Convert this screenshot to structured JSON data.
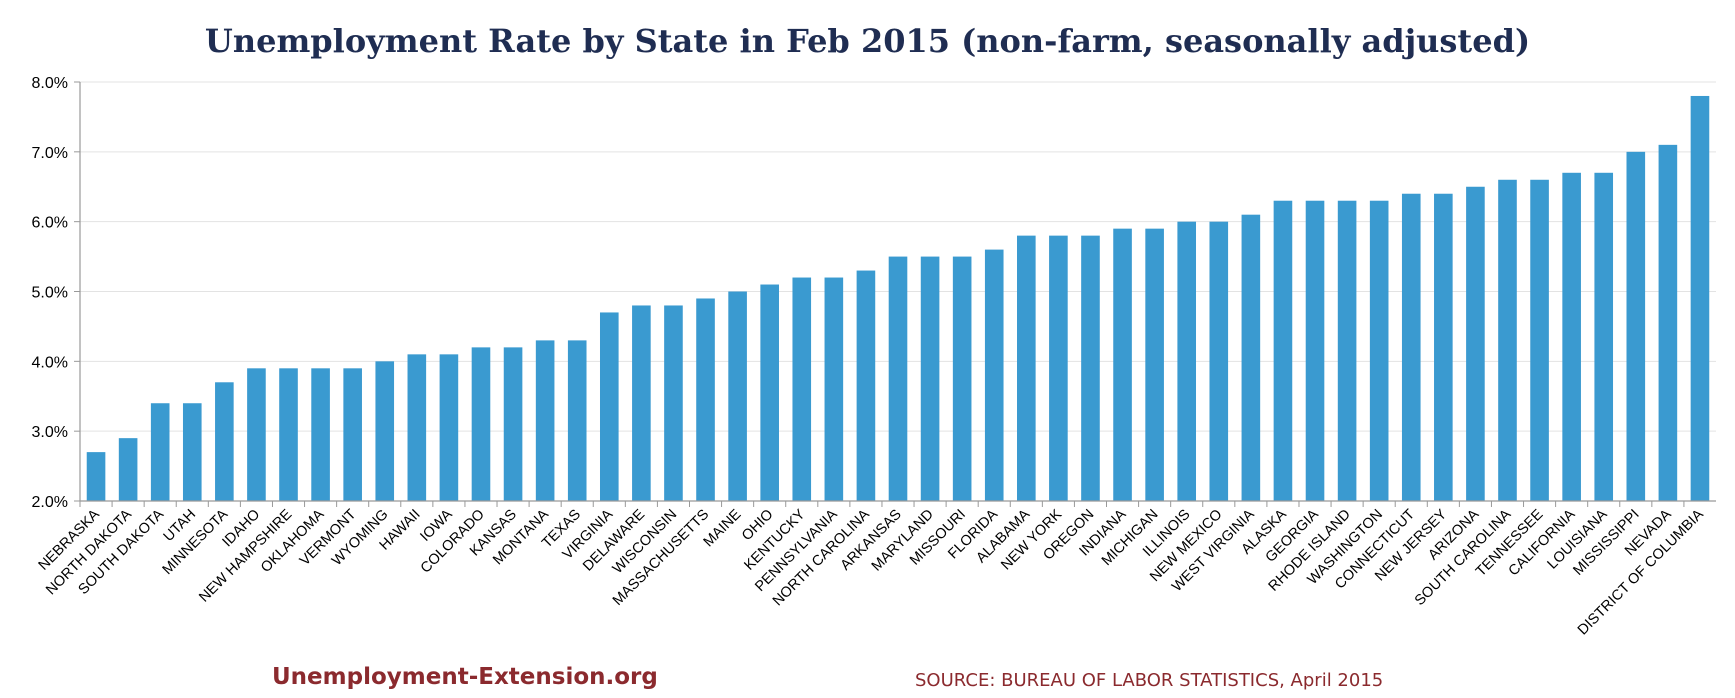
{
  "chart_data": {
    "type": "bar",
    "title": "Unemployment Rate by State in Feb 2015 (non-farm, seasonally adjusted)",
    "xlabel": "",
    "ylabel": "",
    "ylim": [
      2.0,
      8.0
    ],
    "yticks": [
      2.0,
      3.0,
      4.0,
      5.0,
      6.0,
      7.0,
      8.0
    ],
    "ytick_labels": [
      "2.0%",
      "3.0%",
      "4.0%",
      "5.0%",
      "6.0%",
      "7.0%",
      "8.0%"
    ],
    "grid": true,
    "bar_color": "#3a9ad0",
    "categories": [
      "NEBRASKA",
      "NORTH DAKOTA",
      "SOUTH DAKOTA",
      "UTAH",
      "MINNESOTA",
      "IDAHO",
      "NEW HAMPSHIRE",
      "OKLAHOMA",
      "VERMONT",
      "WYOMING",
      "HAWAII",
      "IOWA",
      "COLORADO",
      "KANSAS",
      "MONTANA",
      "TEXAS",
      "VIRGINIA",
      "DELAWARE",
      "WISCONSIN",
      "MASSACHUSETTS",
      "MAINE",
      "OHIO",
      "KENTUCKY",
      "PENNSYLVANIA",
      "NORTH CAROLINA",
      "ARKANSAS",
      "MARYLAND",
      "MISSOURI",
      "FLORIDA",
      "ALABAMA",
      "NEW YORK",
      "OREGON",
      "INDIANA",
      "MICHIGAN",
      "ILLINOIS",
      "NEW MEXICO",
      "WEST VIRGINIA",
      "ALASKA",
      "GEORGIA",
      "RHODE ISLAND",
      "WASHINGTON",
      "CONNECTICUT",
      "NEW JERSEY",
      "ARIZONA",
      "SOUTH CAROLINA",
      "TENNESSEE",
      "CALIFORNIA",
      "LOUISIANA",
      "MISSISSIPPI",
      "NEVADA",
      "DISTRICT OF COLUMBIA"
    ],
    "values": [
      2.7,
      2.9,
      3.4,
      3.4,
      3.7,
      3.9,
      3.9,
      3.9,
      3.9,
      4.0,
      4.1,
      4.1,
      4.2,
      4.2,
      4.3,
      4.3,
      4.7,
      4.8,
      4.8,
      4.9,
      5.0,
      5.1,
      5.2,
      5.2,
      5.3,
      5.5,
      5.5,
      5.5,
      5.6,
      5.8,
      5.8,
      5.8,
      5.9,
      5.9,
      6.0,
      6.0,
      6.1,
      6.3,
      6.3,
      6.3,
      6.3,
      6.4,
      6.4,
      6.5,
      6.6,
      6.6,
      6.7,
      6.7,
      7.0,
      7.1,
      7.8
    ]
  },
  "footer": {
    "site": "Unemployment-Extension.org",
    "source": "SOURCE: BUREAU OF LABOR STATISTICS, April 2015"
  }
}
